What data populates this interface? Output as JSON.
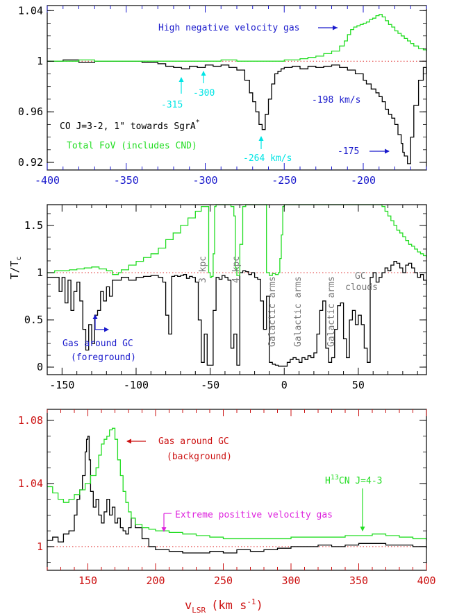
{
  "chart_data": [
    {
      "type": "line",
      "panel": "top",
      "xlim": [
        -400,
        -160
      ],
      "ylim": [
        0.914,
        1.044
      ],
      "x_ticks": [
        -400,
        -350,
        -300,
        -250,
        -200
      ],
      "x_tick_labels": [
        "-400",
        "-350",
        "-300",
        "-250",
        "-200"
      ],
      "y_ticks": [
        0.92,
        0.96,
        1,
        1.04
      ],
      "y_tick_labels": [
        "0.92",
        "0.96",
        "1",
        "1.04"
      ],
      "axis_color": "#1a1acc",
      "baseline": 1,
      "series": [
        {
          "color": "#000000",
          "x": [
            -400,
            -390,
            -380,
            -370,
            -360,
            -350,
            -340,
            -330,
            -325,
            -320,
            -315,
            -310,
            -305,
            -300,
            -295,
            -290,
            -285,
            -280,
            -275,
            -272,
            -270,
            -268,
            -266,
            -264,
            -262,
            -260,
            -258,
            -256,
            -254,
            -252,
            -250,
            -245,
            -240,
            -235,
            -230,
            -225,
            -220,
            -215,
            -210,
            -205,
            -200,
            -198,
            -195,
            -192,
            -190,
            -188,
            -186,
            -184,
            -182,
            -180,
            -178,
            -176,
            -175,
            -174,
            -172,
            -170,
            -168,
            -165,
            -162,
            -160
          ],
          "y": [
            1.0,
            1.001,
            0.999,
            1.0,
            1.0,
            1.0,
            0.999,
            0.998,
            0.996,
            0.995,
            0.994,
            0.996,
            0.995,
            0.997,
            0.996,
            0.997,
            0.995,
            0.993,
            0.985,
            0.975,
            0.968,
            0.96,
            0.95,
            0.946,
            0.958,
            0.97,
            0.982,
            0.99,
            0.992,
            0.994,
            0.995,
            0.996,
            0.994,
            0.996,
            0.995,
            0.996,
            0.997,
            0.995,
            0.993,
            0.99,
            0.985,
            0.982,
            0.978,
            0.975,
            0.972,
            0.968,
            0.962,
            0.958,
            0.955,
            0.95,
            0.942,
            0.935,
            0.928,
            0.925,
            0.919,
            0.94,
            0.965,
            0.985,
            0.995,
            0.99
          ]
        },
        {
          "color": "#22dd22",
          "x": [
            -400,
            -390,
            -380,
            -370,
            -360,
            -350,
            -340,
            -330,
            -320,
            -310,
            -300,
            -290,
            -280,
            -270,
            -260,
            -250,
            -240,
            -235,
            -230,
            -225,
            -220,
            -215,
            -212,
            -210,
            -208,
            -206,
            -204,
            -202,
            -200,
            -198,
            -196,
            -194,
            -192,
            -190,
            -188,
            -186,
            -184,
            -182,
            -180,
            -178,
            -176,
            -174,
            -172,
            -170,
            -168,
            -165,
            -162,
            -160
          ],
          "y": [
            1.0,
            1.0,
            1.001,
            1.0,
            1.0,
            1.0,
            1.0,
            1.0,
            1.0,
            1.0,
            1.0,
            1.001,
            1.0,
            1.0,
            1.0,
            1.001,
            1.002,
            1.003,
            1.004,
            1.006,
            1.008,
            1.012,
            1.016,
            1.021,
            1.025,
            1.027,
            1.028,
            1.029,
            1.03,
            1.031,
            1.033,
            1.034,
            1.036,
            1.037,
            1.035,
            1.032,
            1.029,
            1.027,
            1.024,
            1.022,
            1.02,
            1.018,
            1.016,
            1.014,
            1.012,
            1.01,
            1.009,
            1.008
          ]
        }
      ],
      "annotations": [
        {
          "text": "High negative velocity gas",
          "color": "#1a1acc"
        },
        {
          "text": "-315",
          "color": "#00e5e5"
        },
        {
          "text": "-300",
          "color": "#00e5e5"
        },
        {
          "text": "-198 km/s",
          "color": "#1a1acc"
        },
        {
          "text": "CO J=3-2, 1\" towards SgrA",
          "sup": "*",
          "color": "#000000"
        },
        {
          "text": "Total FoV (includes CND)",
          "color": "#22dd22"
        },
        {
          "text": "-264 km/s",
          "color": "#00e5e5"
        },
        {
          "text": "-175",
          "color": "#1a1acc"
        }
      ]
    },
    {
      "type": "line",
      "panel": "middle",
      "xlim": [
        -160,
        96
      ],
      "ylim": [
        -0.08,
        1.72
      ],
      "x_ticks": [
        -150,
        -100,
        -50,
        0,
        50
      ],
      "x_tick_labels": [
        "-150",
        "-100",
        "-50",
        "0",
        "50"
      ],
      "y_ticks": [
        0,
        0.5,
        1,
        1.5
      ],
      "y_tick_labels": [
        "0",
        "0.5",
        "1",
        "1.5"
      ],
      "ylabel": "T/T",
      "ylabel_sub": "c",
      "axis_color": "#000000",
      "baseline": 1,
      "series": [
        {
          "color": "#000000",
          "x": [
            -160,
            -155,
            -152,
            -150,
            -148,
            -146,
            -144,
            -142,
            -140,
            -138,
            -136,
            -134,
            -132,
            -130,
            -128,
            -126,
            -124,
            -122,
            -120,
            -118,
            -116,
            -114,
            -110,
            -105,
            -100,
            -95,
            -90,
            -85,
            -82,
            -80,
            -78,
            -76,
            -74,
            -72,
            -70,
            -68,
            -66,
            -64,
            -62,
            -60,
            -58,
            -56,
            -54,
            -52,
            -50,
            -48,
            -46,
            -44,
            -42,
            -40,
            -38,
            -36,
            -34,
            -32,
            -30,
            -28,
            -26,
            -24,
            -22,
            -20,
            -18,
            -16,
            -14,
            -12,
            -10,
            -8,
            -6,
            -4,
            -2,
            0,
            2,
            4,
            6,
            8,
            10,
            12,
            14,
            16,
            18,
            20,
            22,
            24,
            26,
            28,
            30,
            32,
            34,
            36,
            38,
            40,
            42,
            44,
            46,
            48,
            50,
            52,
            54,
            56,
            58,
            60,
            62,
            64,
            66,
            68,
            70,
            72,
            74,
            76,
            78,
            80,
            82,
            84,
            86,
            88,
            90,
            92,
            94,
            96
          ],
          "y": [
            0.95,
            0.95,
            0.8,
            0.95,
            0.68,
            0.92,
            0.6,
            0.8,
            0.9,
            0.7,
            0.4,
            0.18,
            0.45,
            0.25,
            0.55,
            0.6,
            0.8,
            0.7,
            0.85,
            0.75,
            0.92,
            0.92,
            0.95,
            0.92,
            0.95,
            0.96,
            0.97,
            0.95,
            0.9,
            0.55,
            0.35,
            0.96,
            0.97,
            0.96,
            0.97,
            0.98,
            0.94,
            0.96,
            0.95,
            0.9,
            0.5,
            0.05,
            0.35,
            0.02,
            0.02,
            0.6,
            0.95,
            0.93,
            0.97,
            0.95,
            0.92,
            0.2,
            0.35,
            0.02,
            1.0,
            1.02,
            1.01,
            0.98,
            1.0,
            0.95,
            0.93,
            0.7,
            0.4,
            0.75,
            0.05,
            0.03,
            0.02,
            0.01,
            0.01,
            0.01,
            0.05,
            0.08,
            0.1,
            0.08,
            0.05,
            0.1,
            0.08,
            0.12,
            0.1,
            0.15,
            0.35,
            0.6,
            0.7,
            0.2,
            0.05,
            0.1,
            0.4,
            0.65,
            0.68,
            0.3,
            0.1,
            0.5,
            0.6,
            0.45,
            0.55,
            0.45,
            0.2,
            0.05,
            0.95,
            1.0,
            0.9,
            0.95,
            1.0,
            1.05,
            1.02,
            1.08,
            1.12,
            1.1,
            1.05,
            1.0,
            1.08,
            1.1,
            1.05,
            1.0,
            0.95,
            0.98,
            0.92,
            0.88
          ]
        },
        {
          "color": "#22dd22",
          "x": [
            -160,
            -155,
            -150,
            -145,
            -140,
            -135,
            -130,
            -125,
            -120,
            -116,
            -112,
            -110,
            -105,
            -100,
            -95,
            -90,
            -85,
            -80,
            -75,
            -70,
            -65,
            -60,
            -56,
            -54,
            -52,
            -51,
            -50,
            -49,
            -48,
            -47,
            -46,
            -44,
            -42,
            -40,
            -38,
            -36,
            -34,
            -33,
            -32,
            -30,
            -28,
            -26,
            -24,
            -22,
            -20,
            -18,
            -16,
            -15,
            -14,
            -13,
            -12,
            -10,
            -8,
            -6,
            -4,
            -3,
            -2,
            -1,
            0,
            2,
            4,
            6,
            8,
            10,
            12,
            14,
            16,
            18,
            20,
            22,
            24,
            26,
            28,
            30,
            32,
            34,
            36,
            38,
            40,
            42,
            44,
            46,
            48,
            50,
            52,
            54,
            56,
            58,
            60,
            62,
            64,
            66,
            68,
            70,
            72,
            74,
            76,
            78,
            80,
            82,
            84,
            86,
            88,
            90,
            92,
            94,
            96
          ],
          "y": [
            1.0,
            1.02,
            1.02,
            1.03,
            1.04,
            1.05,
            1.06,
            1.04,
            1.02,
            0.98,
            1.0,
            1.03,
            1.08,
            1.12,
            1.16,
            1.2,
            1.26,
            1.35,
            1.42,
            1.5,
            1.58,
            1.65,
            1.7,
            1.7,
            1.7,
            1.0,
            0.95,
            0.96,
            1.2,
            1.7,
            1.72,
            1.72,
            1.72,
            1.72,
            1.72,
            1.7,
            1.6,
            1.05,
            0.97,
            1.3,
            1.7,
            1.72,
            1.72,
            1.72,
            1.72,
            1.72,
            1.72,
            1.72,
            1.72,
            1.72,
            1.0,
            0.97,
            0.99,
            0.98,
            1.0,
            1.15,
            1.4,
            1.7,
            1.72,
            1.72,
            1.72,
            1.72,
            1.72,
            1.72,
            1.72,
            1.72,
            1.72,
            1.72,
            1.72,
            1.72,
            1.72,
            1.72,
            1.72,
            1.72,
            1.72,
            1.72,
            1.72,
            1.72,
            1.72,
            1.72,
            1.72,
            1.72,
            1.72,
            1.72,
            1.72,
            1.72,
            1.72,
            1.72,
            1.72,
            1.72,
            1.72,
            1.7,
            1.65,
            1.6,
            1.55,
            1.5,
            1.45,
            1.42,
            1.38,
            1.34,
            1.3,
            1.28,
            1.25,
            1.22,
            1.2,
            1.18,
            1.16
          ]
        }
      ],
      "annotations": [
        {
          "text": "3 kpc",
          "color": "#777777"
        },
        {
          "text": "4 kpc",
          "color": "#777777"
        },
        {
          "text": "Galactic arms",
          "color": "#777777"
        },
        {
          "text": "Galactic arms",
          "color": "#777777"
        },
        {
          "text": "Galactic arms",
          "color": "#777777"
        },
        {
          "text": "GC",
          "color": "#777777"
        },
        {
          "text": "clouds",
          "color": "#777777"
        },
        {
          "text": "Gas around GC",
          "color": "#1a1acc"
        },
        {
          "text": "(foreground)",
          "color": "#1a1acc"
        }
      ]
    },
    {
      "type": "line",
      "panel": "bottom",
      "xlim": [
        120,
        400
      ],
      "ylim": [
        0.985,
        1.087
      ],
      "x_ticks": [
        150,
        200,
        250,
        300,
        350,
        400
      ],
      "x_tick_labels": [
        "150",
        "200",
        "250",
        "300",
        "350",
        "400"
      ],
      "y_ticks": [
        1,
        1.04,
        1.08
      ],
      "y_tick_labels": [
        "1",
        "1.04",
        "1.08"
      ],
      "xlabel": "v",
      "xlabel_sub": "LSR",
      "xlabel_units": "(km s",
      "xlabel_units_sup": "-1",
      "xlabel_units_end": ")",
      "axis_color": "#cc1111",
      "baseline": 1,
      "series": [
        {
          "color": "#000000",
          "x": [
            120,
            124,
            128,
            132,
            136,
            140,
            142,
            144,
            146,
            148,
            149,
            150,
            151,
            152,
            154,
            156,
            158,
            160,
            162,
            164,
            166,
            168,
            170,
            172,
            174,
            176,
            178,
            180,
            182,
            185,
            190,
            195,
            200,
            210,
            220,
            230,
            240,
            250,
            260,
            270,
            280,
            290,
            300,
            310,
            320,
            330,
            340,
            350,
            360,
            370,
            380,
            390,
            400
          ],
          "y": [
            1.004,
            1.006,
            1.003,
            1.008,
            1.01,
            1.02,
            1.03,
            1.036,
            1.045,
            1.06,
            1.068,
            1.07,
            1.055,
            1.035,
            1.025,
            1.03,
            1.02,
            1.015,
            1.022,
            1.03,
            1.02,
            1.025,
            1.015,
            1.018,
            1.012,
            1.01,
            1.008,
            1.012,
            1.018,
            1.012,
            1.005,
            1.0,
            0.998,
            0.997,
            0.996,
            0.996,
            0.997,
            0.996,
            0.998,
            0.997,
            0.998,
            0.999,
            1.0,
            1.0,
            1.001,
            1.0,
            1.001,
            1.002,
            1.002,
            1.001,
            1.001,
            1.0,
            0.999
          ]
        },
        {
          "color": "#22dd22",
          "x": [
            120,
            124,
            128,
            132,
            136,
            140,
            144,
            148,
            152,
            156,
            158,
            160,
            162,
            164,
            166,
            168,
            170,
            172,
            174,
            176,
            178,
            180,
            182,
            185,
            190,
            195,
            200,
            210,
            220,
            230,
            240,
            250,
            260,
            270,
            280,
            290,
            300,
            310,
            320,
            330,
            340,
            350,
            360,
            370,
            380,
            390,
            400
          ],
          "y": [
            1.038,
            1.034,
            1.03,
            1.028,
            1.03,
            1.033,
            1.036,
            1.04,
            1.045,
            1.05,
            1.058,
            1.065,
            1.068,
            1.07,
            1.074,
            1.075,
            1.068,
            1.055,
            1.045,
            1.035,
            1.028,
            1.022,
            1.018,
            1.014,
            1.012,
            1.011,
            1.01,
            1.009,
            1.008,
            1.007,
            1.006,
            1.005,
            1.005,
            1.005,
            1.005,
            1.005,
            1.006,
            1.006,
            1.006,
            1.006,
            1.007,
            1.007,
            1.008,
            1.007,
            1.006,
            1.005,
            1.004
          ]
        }
      ],
      "annotations": [
        {
          "text": "Gas around GC",
          "color": "#cc1111"
        },
        {
          "text": "(background)",
          "color": "#cc1111"
        },
        {
          "text": "H",
          "sup": "13",
          "text_end": "CN J=4-3",
          "color": "#22dd22"
        },
        {
          "text": "Extreme positive velocity gas",
          "color": "#dd22dd"
        }
      ]
    }
  ]
}
